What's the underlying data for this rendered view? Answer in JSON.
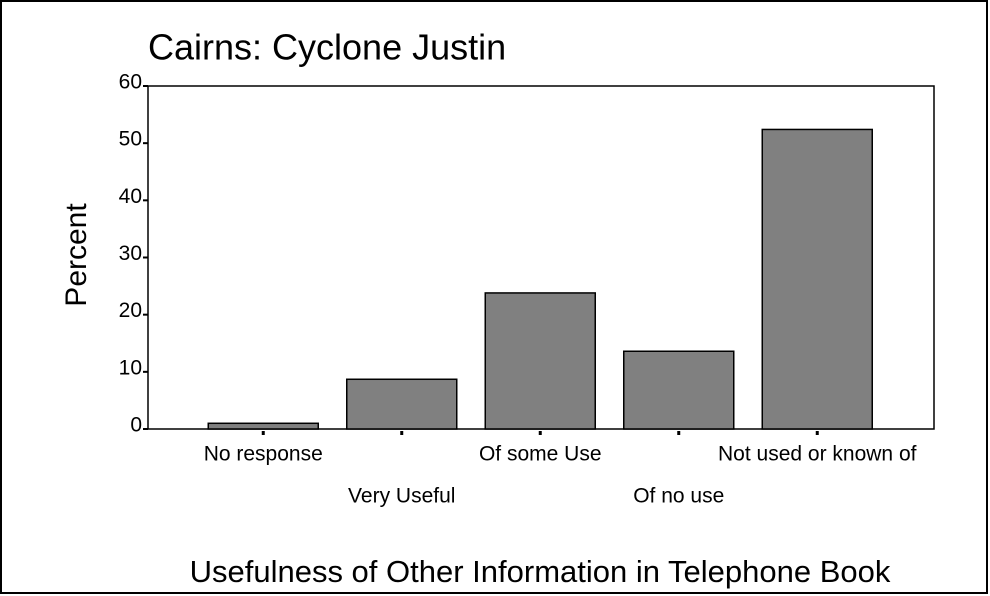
{
  "chart_data": {
    "type": "bar",
    "title": "Cairns: Cyclone Justin",
    "y_label": "Percent",
    "x_label": "Usefulness of Other Information in Telephone Book",
    "categories": [
      "No response",
      "Very Useful",
      "Of some Use",
      "Of no use",
      "Not used or known of"
    ],
    "values": [
      1.0,
      8.7,
      23.8,
      13.6,
      52.4
    ],
    "color": "#808080",
    "ylim": [
      0,
      60
    ],
    "yticks": [
      0,
      10,
      20,
      30,
      40,
      50,
      60
    ]
  }
}
